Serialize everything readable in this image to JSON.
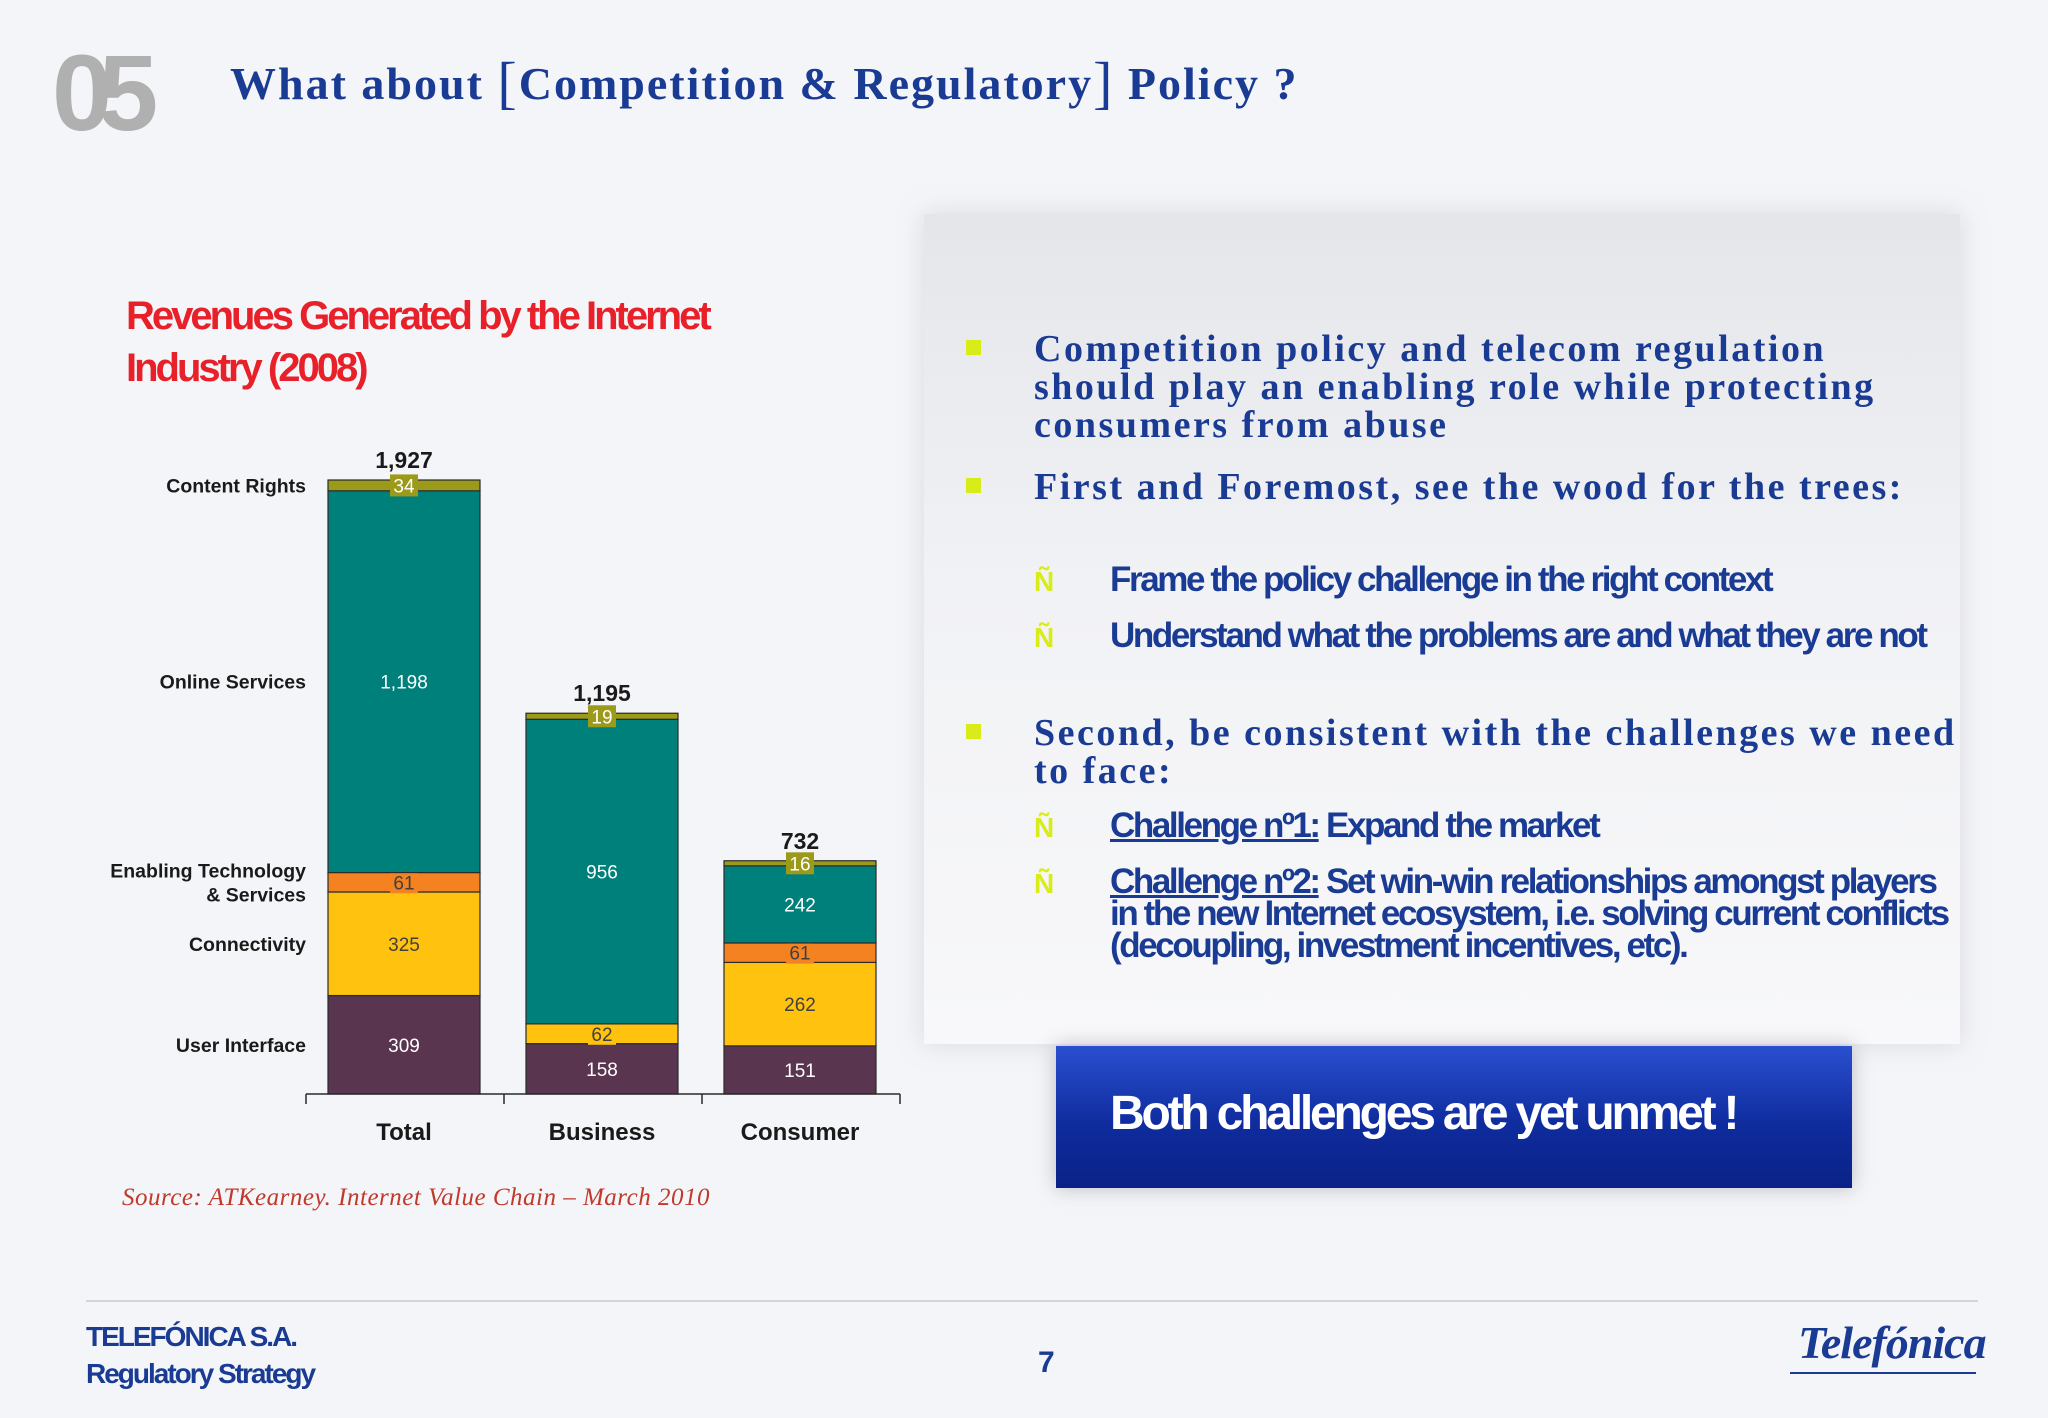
{
  "slide": {
    "section_number": "05",
    "title_pre": "What about ",
    "bracket_open": "[",
    "title_mid": "Competition & Regulatory",
    "bracket_close": "]",
    "title_post": " Policy ?"
  },
  "colors": {
    "title_blue": "#1a3b93",
    "accent_red": "#e8202a",
    "bullet_green": "#d8ec1a"
  },
  "chart_data": {
    "type": "bar",
    "stacked": true,
    "title": "Revenues Generated by the Internet Industry (2008)",
    "categories": [
      "Total",
      "Business",
      "Consumer"
    ],
    "totals": [
      "1,927",
      "1,195",
      "732"
    ],
    "series": [
      {
        "name": "User Interface",
        "values": [
          309,
          158,
          151
        ],
        "labels": [
          "309",
          "158",
          "151"
        ],
        "color": "#5a3550",
        "label_color": "#ffffff"
      },
      {
        "name": "Connectivity",
        "values": [
          325,
          62,
          262
        ],
        "labels": [
          "325",
          "62",
          "262"
        ],
        "color": "#ffc20e",
        "label_color": "#404040"
      },
      {
        "name": "Enabling Technology & Services",
        "values": [
          61,
          0,
          61
        ],
        "labels": [
          "61",
          "",
          "61"
        ],
        "color": "#f58220",
        "label_color": "#404040"
      },
      {
        "name": "Online Services",
        "values": [
          1198,
          956,
          242
        ],
        "labels": [
          "1,198",
          "956",
          "242"
        ],
        "color": "#00807b",
        "label_color": "#ffffff"
      },
      {
        "name": "Content Rights",
        "values": [
          34,
          19,
          16
        ],
        "labels": [
          "34",
          "19",
          "16"
        ],
        "color": "#9c9a1a",
        "label_color": "#ffffff"
      }
    ],
    "row_labels": [
      {
        "series": "Content Rights",
        "lines": [
          "Content Rights"
        ]
      },
      {
        "series": "Online Services",
        "lines": [
          "Online Services"
        ]
      },
      {
        "series": "Enabling Technology & Services",
        "lines": [
          "Enabling Technology",
          "& Services"
        ]
      },
      {
        "series": "Connectivity",
        "lines": [
          "Connectivity"
        ]
      },
      {
        "series": "User Interface",
        "lines": [
          "User Interface"
        ]
      }
    ],
    "ylim": [
      0,
      1927
    ],
    "grid": false,
    "legend": "left"
  },
  "source": "Source: ATKearney. Internet Value Chain – March 2010",
  "bullets": [
    {
      "text": "Competition policy and telecom regulation should play an enabling role while protecting consumers from abuse"
    },
    {
      "text": "First and Foremost, see the wood for the trees:"
    },
    {
      "text": "Second, be consistent with the challenges we need to face:"
    }
  ],
  "sub_mark": "Ñ",
  "subbullets": [
    {
      "text": "Frame the policy challenge in the right context"
    },
    {
      "text": "Understand what the problems are and what they are not"
    },
    {
      "label": "Challenge nº1:",
      "text": " Expand the market"
    },
    {
      "label": "Challenge nº2:",
      "text": " Set win-win relationships amongst players in the new Internet ecosystem, i.e. solving current conflicts (decoupling, investment incentives, etc)."
    }
  ],
  "callout": "Both challenges are yet unmet !",
  "footer": {
    "company": "TELEFÓNICA S.A.",
    "department": "Regulatory Strategy",
    "page": "7",
    "logo": "Telefónica"
  }
}
